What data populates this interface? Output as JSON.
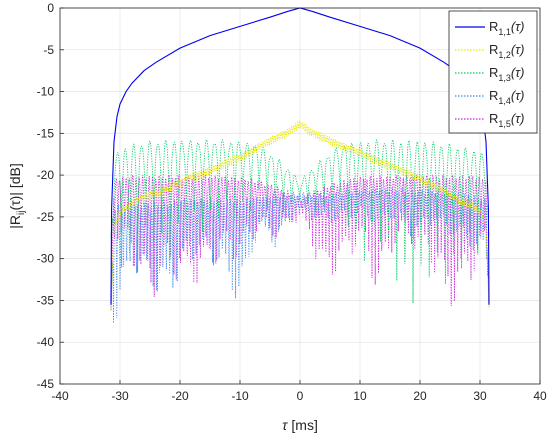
{
  "chart_data": {
    "type": "line",
    "xlabel_symbol": "τ",
    "xlabel_unit": "[ms]",
    "ylabel_prefix": "|R",
    "ylabel_sub": "ij",
    "ylabel_mid": "(τ)| [dB]",
    "xlim": [
      -40,
      40
    ],
    "ylim": [
      -45,
      0
    ],
    "xticks": [
      -40,
      -30,
      -20,
      -10,
      0,
      10,
      20,
      30,
      40
    ],
    "yticks": [
      0,
      -5,
      -10,
      -15,
      -20,
      -25,
      -30,
      -35,
      -40,
      -45
    ],
    "grid": true,
    "legend_position": "top-right",
    "series": [
      {
        "name": "R1,1(τ)",
        "label_main": "R",
        "label_sub": "1,1",
        "label_arg": "(τ)",
        "color": "#0000ee",
        "style": "solid",
        "x": [
          -31.5,
          -31.4,
          -31,
          -30.5,
          -30,
          -29,
          -28,
          -26,
          -24,
          -20,
          -15,
          -10,
          -5,
          -2,
          0,
          2,
          5,
          10,
          15,
          20,
          24,
          26,
          28,
          29,
          30,
          30.5,
          31,
          31.4,
          31.5
        ],
        "y": [
          -35.5,
          -24,
          -16,
          -13,
          -11.5,
          -10,
          -9,
          -7.5,
          -6.5,
          -4.8,
          -3.3,
          -2.2,
          -1.1,
          -0.4,
          0,
          -0.4,
          -1.1,
          -2.2,
          -3.3,
          -4.8,
          -6.5,
          -7.5,
          -9,
          -10,
          -11.5,
          -13,
          -16,
          -24,
          -35.5
        ]
      },
      {
        "name": "R1,2(τ)",
        "label_main": "R",
        "label_sub": "1,2",
        "label_arg": "(τ)",
        "color": "#e6e600",
        "style": "dotted",
        "x": [
          -31.5,
          -31,
          -30,
          -28,
          -25,
          -20,
          -15,
          -10,
          -5,
          -2,
          0,
          2,
          5,
          10,
          15,
          20,
          25,
          28,
          30,
          31,
          31.5
        ],
        "y": [
          -36,
          -26,
          -24,
          -23,
          -22,
          -20.5,
          -19,
          -17.5,
          -15.5,
          -14.5,
          -13.5,
          -14.5,
          -15.5,
          -17,
          -18.5,
          -20,
          -22,
          -23,
          -24,
          -26,
          -36
        ],
        "y_lower": [
          -36,
          -26.5,
          -25,
          -24,
          -23,
          -21.5,
          -20,
          -18.5,
          -16.5,
          -15.5,
          -14.5,
          -15.5,
          -16.5,
          -18,
          -19.5,
          -21,
          -23,
          -24,
          -25,
          -26.5,
          -36
        ]
      },
      {
        "name": "R1,3(τ)",
        "label_main": "R",
        "label_sub": "1,3",
        "label_arg": "(τ)",
        "color": "#00cc66",
        "style": "dotted",
        "x": [
          -31.5,
          -31,
          -28,
          -25,
          -22,
          -19,
          -16,
          -13,
          -10,
          -7,
          -4,
          -1,
          0,
          1,
          4,
          7,
          10,
          13,
          16,
          19,
          22,
          25,
          28,
          31,
          31.5
        ],
        "y": [
          -27,
          -17.5,
          -16.5,
          -16.2,
          -16,
          -16,
          -16,
          -16,
          -16.2,
          -16.5,
          -18,
          -20,
          -21,
          -20,
          -18,
          -16.5,
          -16.2,
          -16,
          -16,
          -16,
          -16.2,
          -16.5,
          -17,
          -17.5,
          -27
        ],
        "y_lower": [
          -30,
          -32,
          -38,
          -30,
          -35,
          -28,
          -30,
          -27,
          -28,
          -25,
          -27,
          -25,
          -24,
          -25,
          -27,
          -25,
          -35,
          -30,
          -37,
          -41,
          -36,
          -38,
          -33,
          -32,
          -30
        ]
      },
      {
        "name": "R1,4(τ)",
        "label_main": "R",
        "label_sub": "1,4",
        "label_arg": "(τ)",
        "color": "#4488ee",
        "style": "dotted",
        "x": [
          -31.5,
          -31,
          -28,
          -25,
          -22,
          -19,
          -16,
          -13,
          -10,
          -7,
          -4,
          -1,
          0,
          1,
          4,
          7,
          10,
          13,
          16,
          19,
          22,
          25,
          28,
          31,
          31.5
        ],
        "y": [
          -36,
          -24,
          -23.5,
          -23.5,
          -23.5,
          -23,
          -23,
          -23,
          -23,
          -22.8,
          -22.5,
          -22.3,
          -22.2,
          -22.3,
          -22.5,
          -22,
          -22,
          -21.8,
          -21.8,
          -22,
          -22,
          -22.2,
          -22.5,
          -23,
          -36
        ],
        "y_lower": [
          -36,
          -44,
          -34,
          -37,
          -39,
          -33,
          -32,
          -35,
          -41,
          -28,
          -31,
          -26,
          -25,
          -26,
          -27,
          -27,
          -26,
          -28,
          -26,
          -30,
          -27,
          -29,
          -31,
          -33,
          -36
        ]
      },
      {
        "name": "R1,5(τ)",
        "label_main": "R",
        "label_sub": "1,5",
        "label_arg": "(τ)",
        "color": "#cc22dd",
        "style": "dotted",
        "x": [
          -31.5,
          -31,
          -28,
          -25,
          -22,
          -19,
          -16,
          -13,
          -10,
          -7,
          -4,
          -1,
          0,
          1,
          4,
          7,
          10,
          13,
          16,
          19,
          22,
          25,
          28,
          31,
          31.5
        ],
        "y": [
          -36,
          -20.5,
          -20.2,
          -20.2,
          -20.2,
          -20.2,
          -20.2,
          -20.3,
          -20.4,
          -20.8,
          -21.5,
          -22.5,
          -23,
          -22.5,
          -21.5,
          -20.8,
          -20.4,
          -20.3,
          -20.2,
          -20.2,
          -20.2,
          -20.2,
          -20.2,
          -20.5,
          -36
        ],
        "y_lower": [
          -36,
          -30,
          -34,
          -42,
          -36,
          -39,
          -37,
          -33,
          -34,
          -29,
          -30,
          -27,
          -26,
          -28,
          -37,
          -35,
          -31,
          -40,
          -31,
          -32,
          -35,
          -42,
          -38,
          -33,
          -36
        ]
      }
    ]
  }
}
